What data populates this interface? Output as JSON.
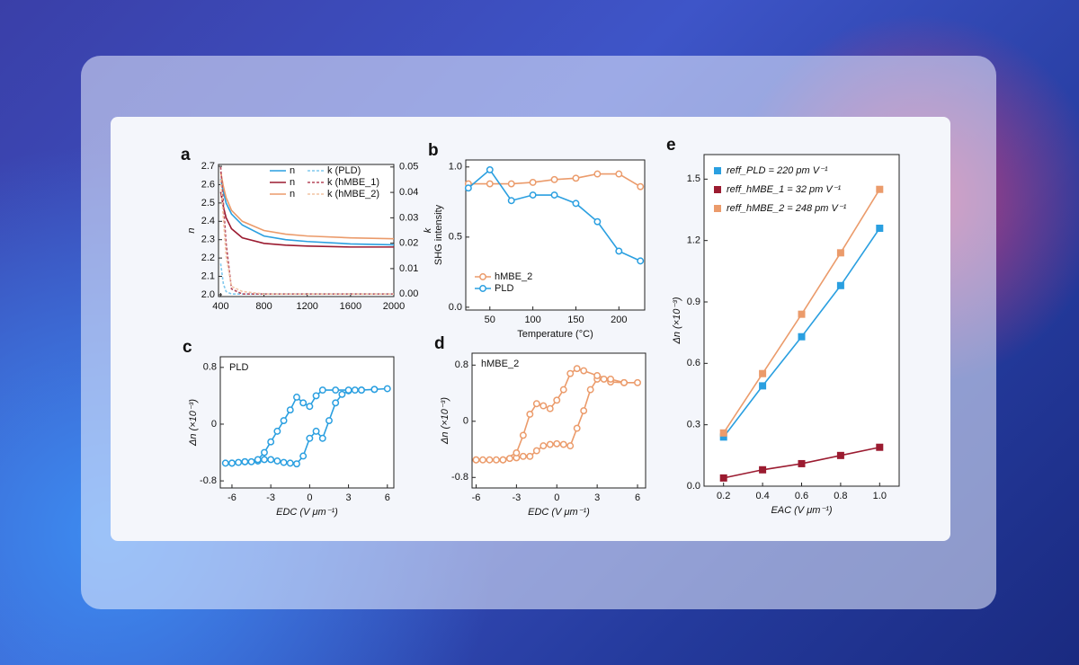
{
  "chart_data": [
    {
      "label": "a",
      "type": "line",
      "ylabel": "n",
      "y2label": "k",
      "x": [
        400,
        425,
        450,
        500,
        600,
        800,
        1000,
        1200,
        1600,
        2000
      ],
      "xlim": [
        380,
        2000
      ],
      "xticks": [
        400,
        800,
        1200,
        1600,
        2000
      ],
      "ylim": [
        1.99,
        2.71
      ],
      "yticks": [
        {
          "value": 2.0,
          "label": "2.0"
        },
        2.1,
        2.2,
        2.3,
        2.4,
        2.5,
        2.6,
        2.7
      ],
      "y2lim": [
        -0.001,
        0.051
      ],
      "y2ticks": [
        {
          "value": 0,
          "label": "0.00"
        },
        0.01,
        0.02,
        0.03,
        0.04,
        0.05
      ],
      "legend": "upper right",
      "series": [
        {
          "name": "n",
          "color": "#2a9fe0",
          "values": [
            2.63,
            2.56,
            2.5,
            2.44,
            2.38,
            2.32,
            2.3,
            2.29,
            2.277,
            2.272
          ]
        },
        {
          "name": "n",
          "color": "#9b1b30",
          "values": [
            2.56,
            2.48,
            2.42,
            2.36,
            2.31,
            2.28,
            2.27,
            2.265,
            2.26,
            2.26
          ]
        },
        {
          "name": "n",
          "color": "#eb9b6b",
          "values": [
            2.67,
            2.59,
            2.53,
            2.46,
            2.4,
            2.35,
            2.33,
            2.32,
            2.31,
            2.305
          ]
        },
        {
          "name": "k (PLD)",
          "color": "#80c8ee",
          "axis": "y2",
          "dash": true,
          "values": [
            0.012,
            0.004,
            0.001,
            0,
            0,
            0,
            0,
            0,
            0,
            0
          ]
        },
        {
          "name": "k (hMBE_1)",
          "color": "#b5485c",
          "axis": "y2",
          "dash": true,
          "values": [
            0.05,
            0.036,
            0.02,
            0.002,
            0,
            0,
            0,
            0,
            0,
            0
          ]
        },
        {
          "name": "k (hMBE_2)",
          "color": "#f2c3a3",
          "axis": "y2",
          "dash": true,
          "values": [
            0.045,
            0.03,
            0.015,
            0.003,
            0.001,
            0,
            0,
            0,
            0,
            0
          ]
        }
      ]
    },
    {
      "label": "b",
      "type": "line",
      "marker": "circle",
      "ylabel": "SHG intensity",
      "xlabel": "Temperature (°C)",
      "x": [
        25,
        50,
        75,
        100,
        125,
        150,
        175,
        200,
        225
      ],
      "xlim": [
        22,
        230
      ],
      "xticks": [
        50,
        100,
        150,
        200
      ],
      "ylim": [
        -0.02,
        1.05
      ],
      "yticks": [
        {
          "value": 0,
          "label": "0.0"
        },
        0.5,
        {
          "value": 1,
          "label": "1.0"
        }
      ],
      "legend": "lower left",
      "series": [
        {
          "name": "hMBE_2",
          "color": "#eb9b6b",
          "values": [
            0.88,
            0.88,
            0.88,
            0.89,
            0.91,
            0.92,
            0.95,
            0.95,
            0.86
          ]
        },
        {
          "name": "PLD",
          "color": "#2a9fe0",
          "values": [
            0.85,
            0.98,
            0.76,
            0.8,
            0.8,
            0.74,
            0.61,
            0.4,
            0.33
          ]
        }
      ]
    },
    {
      "label": "c",
      "type": "line",
      "marker": "circle",
      "ylabel": "Δn (×10⁻³)",
      "xlabel": "EDC (V μm⁻¹)",
      "annotation": "PLD",
      "xlim": [
        -6.9,
        6.5
      ],
      "xticks": [
        -6,
        -3,
        0,
        3,
        6
      ],
      "ylim": [
        -0.9,
        0.95
      ],
      "yticks": [
        -0.8,
        0,
        0.8
      ],
      "series": [
        {
          "name": "PLD",
          "color": "#2a9fe0",
          "x": [
            -6.5,
            -6,
            -5.5,
            -5,
            -4.5,
            -4,
            -3.5,
            -3,
            -2.5,
            -2,
            -1.5,
            -1,
            -0.5,
            0,
            0.5,
            1,
            1.5,
            2,
            2.5,
            3,
            3.5,
            4,
            5,
            6,
            5,
            4,
            3,
            2,
            1,
            0.5,
            0,
            -0.5,
            -1,
            -1.5,
            -2,
            -2.5,
            -3,
            -3.5,
            -4,
            -5,
            -6
          ],
          "values": [
            -0.55,
            -0.55,
            -0.54,
            -0.53,
            -0.53,
            -0.52,
            -0.5,
            -0.5,
            -0.52,
            -0.54,
            -0.55,
            -0.56,
            -0.45,
            -0.2,
            -0.1,
            -0.2,
            0.05,
            0.3,
            0.42,
            0.47,
            0.48,
            0.48,
            0.49,
            0.5,
            0.49,
            0.48,
            0.48,
            0.48,
            0.48,
            0.4,
            0.25,
            0.3,
            0.38,
            0.2,
            0.05,
            -0.1,
            -0.25,
            -0.4,
            -0.5,
            -0.53,
            -0.55
          ]
        }
      ]
    },
    {
      "label": "d",
      "type": "line",
      "marker": "circle",
      "ylabel": "Δn (×10⁻³)",
      "xlabel": "EDC (V μm⁻¹)",
      "annotation": "hMBE_2",
      "xlim": [
        -6.3,
        6.6
      ],
      "xticks": [
        -6,
        -3,
        0,
        3,
        6
      ],
      "ylim": [
        -0.95,
        0.97
      ],
      "yticks": [
        -0.8,
        0,
        0.8
      ],
      "series": [
        {
          "name": "hMBE_2",
          "color": "#eb9b6b",
          "x": [
            -6,
            -5.5,
            -5,
            -4.5,
            -4,
            -3.5,
            -3,
            -2.5,
            -2,
            -1.5,
            -1,
            -0.5,
            0,
            0.5,
            1,
            1.5,
            2,
            2.5,
            3,
            3.5,
            4,
            5,
            6,
            5,
            4,
            3,
            2,
            1.5,
            1,
            0.5,
            0,
            -0.5,
            -1,
            -1.5,
            -2,
            -2.5,
            -3,
            -4,
            -6
          ],
          "values": [
            -0.55,
            -0.55,
            -0.55,
            -0.55,
            -0.55,
            -0.53,
            -0.52,
            -0.5,
            -0.5,
            -0.42,
            -0.35,
            -0.33,
            -0.32,
            -0.33,
            -0.35,
            -0.1,
            0.15,
            0.45,
            0.6,
            0.6,
            0.56,
            0.55,
            0.55,
            0.55,
            0.6,
            0.65,
            0.72,
            0.75,
            0.68,
            0.45,
            0.3,
            0.18,
            0.22,
            0.25,
            0.1,
            -0.2,
            -0.45,
            -0.55,
            -0.55
          ]
        }
      ]
    },
    {
      "label": "e",
      "type": "line",
      "marker": "square",
      "ylabel": "Δn (×10⁻³)",
      "xlabel": "EAC (V μm⁻¹)",
      "x": [
        0.2,
        0.4,
        0.6,
        0.8,
        1.0
      ],
      "xlim": [
        0.1,
        1.1
      ],
      "xticks": [
        0.2,
        0.4,
        0.6,
        0.8,
        {
          "value": 1,
          "label": "1.0"
        }
      ],
      "ylim": [
        0,
        1.62
      ],
      "yticks": [
        {
          "value": 0,
          "label": "0.0"
        },
        0.3,
        0.6,
        0.9,
        1.2,
        1.5
      ],
      "legend": "upper left",
      "series": [
        {
          "name": "reff_PLD = 220 pm V⁻¹",
          "color": "#2a9fe0",
          "values": [
            0.24,
            0.49,
            0.73,
            0.98,
            1.26
          ]
        },
        {
          "name": "reff_hMBE_1 = 32 pm V⁻¹",
          "color": "#9b1b30",
          "values": [
            0.04,
            0.08,
            0.11,
            0.15,
            0.19
          ]
        },
        {
          "name": "reff_hMBE_2 = 248 pm V⁻¹",
          "color": "#eb9b6b",
          "values": [
            0.26,
            0.55,
            0.84,
            1.14,
            1.45
          ]
        }
      ]
    }
  ]
}
